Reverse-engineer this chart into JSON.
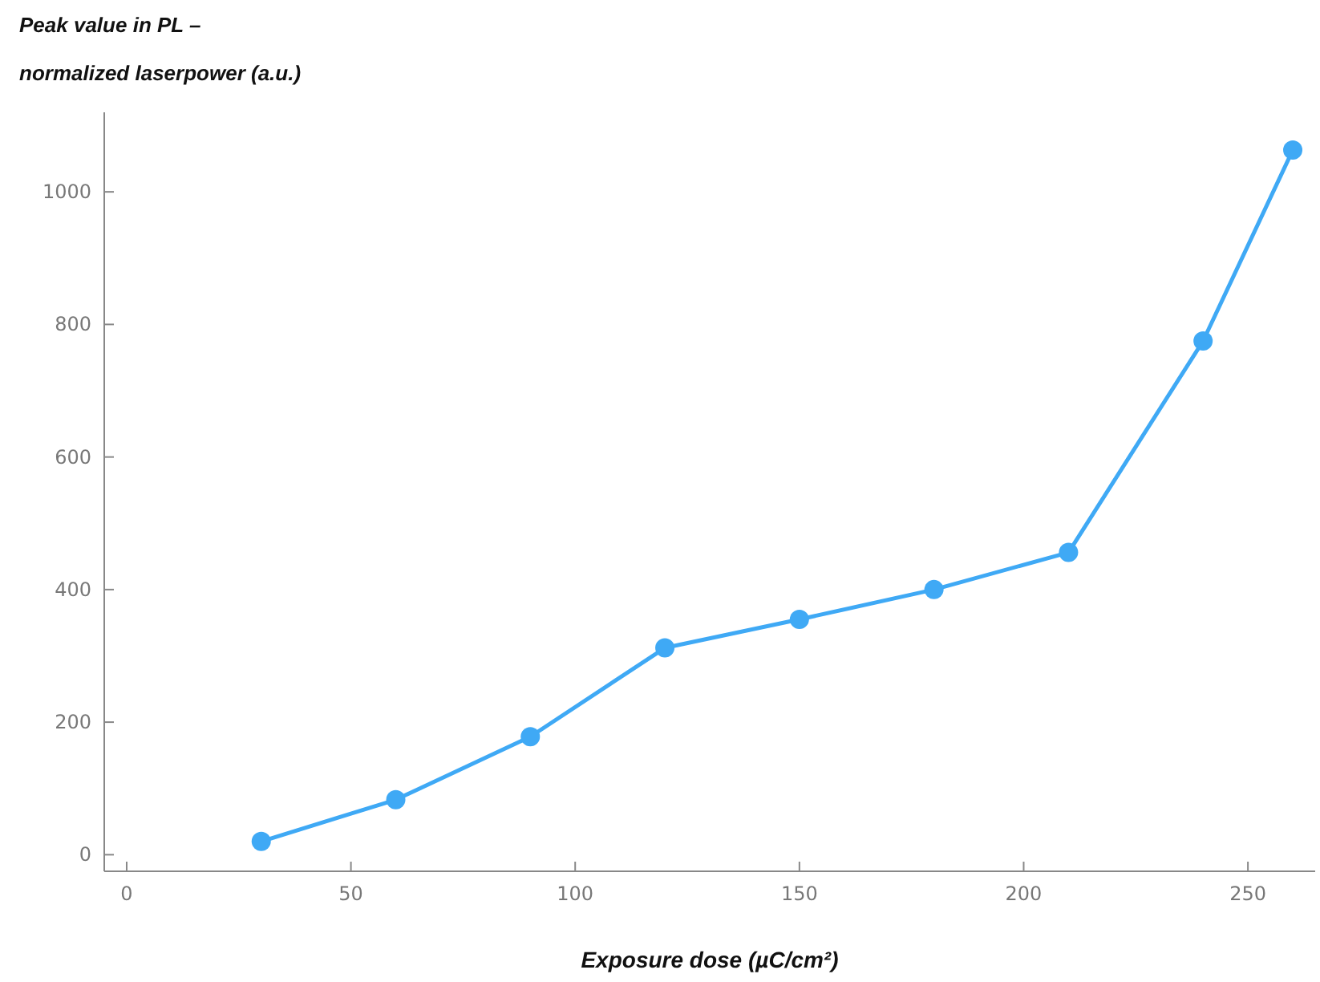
{
  "chart_data": {
    "type": "line",
    "xlabel": "Exposure dose (µC/cm²)",
    "ylabel": "Peak value in PL – normalized laserpower (a.u.)",
    "x": [
      30,
      60,
      90,
      120,
      150,
      180,
      210,
      240,
      260
    ],
    "series": [
      {
        "color": "#3fa9f5",
        "values": [
          20,
          83,
          178,
          312,
          355,
          400,
          456,
          775,
          1063
        ]
      }
    ],
    "xlim": [
      -5,
      265
    ],
    "ylim": [
      -25,
      1120
    ],
    "xticks": [
      0,
      50,
      100,
      150,
      200,
      250
    ],
    "yticks": [
      0,
      200,
      400,
      600,
      800,
      1000
    ],
    "grid": false,
    "marker": "circle",
    "line_style": "solid"
  }
}
